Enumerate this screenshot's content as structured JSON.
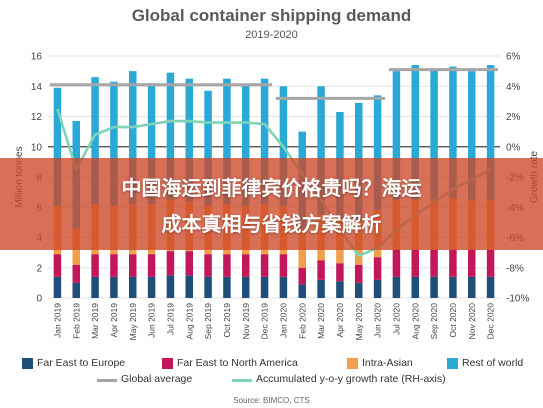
{
  "title": "Global container shipping demand",
  "subtitle": "2019-2020",
  "banner": {
    "line1": "中国海运到菲律宾价格贵吗？海运",
    "line2": "成本真相与省钱方案解析"
  },
  "source": "Source: BIMCO, CTS",
  "colors": {
    "far_east_europe": "#1f4e79",
    "far_east_north_america": "#c2185b",
    "intra_asian": "#f0a04b",
    "rest_of_world": "#2aa8d6",
    "global_average": "#a6a6a6",
    "growth_rate": "#7fd4b8"
  },
  "chart_data": {
    "type": "bar",
    "stacked": true,
    "categories": [
      "Jan 2019",
      "Feb 2019",
      "Mar 2019",
      "Apr 2019",
      "May 2019",
      "Jun 2019",
      "Jul 2019",
      "Aug 2019",
      "Sep 2019",
      "Oct 2019",
      "Nov 2019",
      "Dec 2019",
      "Jan 2020",
      "Feb 2020",
      "Mar 2020",
      "Apr 2020",
      "May 2020",
      "Jun 2020",
      "Jul 2020",
      "Aug 2020",
      "Sep 2020",
      "Oct 2020",
      "Nov 2020",
      "Dec 2020"
    ],
    "series": [
      {
        "name": "Far East to Europe",
        "values": [
          1.4,
          1.0,
          1.4,
          1.4,
          1.4,
          1.4,
          1.5,
          1.5,
          1.4,
          1.4,
          1.4,
          1.4,
          1.4,
          0.9,
          1.2,
          1.1,
          1.0,
          1.2,
          1.4,
          1.4,
          1.4,
          1.4,
          1.4,
          1.4
        ]
      },
      {
        "name": "Far East to North America",
        "values": [
          1.5,
          1.2,
          1.5,
          1.5,
          1.5,
          1.5,
          1.6,
          1.6,
          1.5,
          1.5,
          1.5,
          1.5,
          1.5,
          1.1,
          1.3,
          1.2,
          1.2,
          1.5,
          1.8,
          1.8,
          1.8,
          1.8,
          1.8,
          1.8
        ]
      },
      {
        "name": "Intra-Asian",
        "values": [
          3.2,
          2.4,
          3.3,
          3.2,
          3.3,
          3.3,
          3.4,
          3.3,
          3.2,
          3.3,
          3.2,
          3.3,
          3.2,
          2.5,
          3.0,
          2.9,
          2.9,
          3.1,
          3.3,
          3.3,
          3.3,
          3.4,
          3.3,
          3.3
        ]
      },
      {
        "name": "Rest of world",
        "values": [
          7.8,
          7.1,
          8.4,
          8.2,
          8.8,
          8.0,
          8.4,
          8.1,
          7.6,
          8.3,
          8.0,
          8.3,
          7.9,
          6.5,
          8.5,
          7.1,
          7.8,
          7.6,
          8.5,
          8.9,
          8.6,
          8.7,
          8.5,
          8.9
        ]
      }
    ],
    "global_average": [
      {
        "from": 0,
        "to": 11,
        "value": 14.1
      },
      {
        "from": 12,
        "to": 17,
        "value": 13.2
      },
      {
        "from": 18,
        "to": 23,
        "value": 15.1
      }
    ],
    "growth_rate": [
      2.5,
      -1.5,
      0.8,
      1.3,
      1.3,
      1.5,
      1.7,
      1.7,
      1.6,
      1.6,
      1.6,
      1.5,
      0.0,
      -1.8,
      -3.5,
      -5.5,
      -7.2,
      -6.7,
      -5.5,
      -4.5,
      -3.7,
      -2.8,
      -2.2,
      -1.5
    ],
    "ylabel": "Million tonnes",
    "y2label": "Growth rate",
    "ylim": [
      0,
      16
    ],
    "y2lim": [
      -10,
      6
    ],
    "yticks": [
      "0",
      "2",
      "4",
      "6",
      "8",
      "10",
      "12",
      "14",
      "16"
    ],
    "y2ticks": [
      "-10%",
      "-8%",
      "-6%",
      "-4%",
      "-2%",
      "0%",
      "2%",
      "4%",
      "6%"
    ],
    "legend": [
      "Far East to Europe",
      "Far East to North America",
      "Intra-Asian",
      "Rest of world",
      "Global average",
      "Accumulated y-o-y growth rate (RH-axis)"
    ],
    "grid": true,
    "legend_position": "bottom"
  }
}
